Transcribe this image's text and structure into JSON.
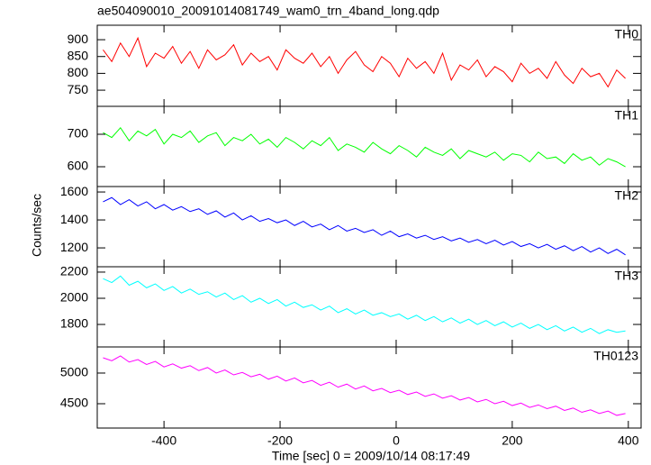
{
  "chart_data": {
    "type": "line",
    "title": "ae504090010_20091014081749_wam0_trn_4band_long.qdp",
    "xlabel": "Time [sec] 0 = 2009/10/14 08:17:49",
    "ylabel": "Counts/sec",
    "xlim": [
      -515,
      422
    ],
    "xticks": [
      -400,
      -200,
      0,
      200,
      400
    ],
    "x": [
      -505,
      -490,
      -475,
      -460,
      -445,
      -430,
      -415,
      -400,
      -385,
      -370,
      -355,
      -340,
      -325,
      -310,
      -295,
      -280,
      -265,
      -250,
      -235,
      -220,
      -205,
      -190,
      -175,
      -160,
      -145,
      -130,
      -115,
      -100,
      -85,
      -70,
      -55,
      -40,
      -25,
      -10,
      5,
      20,
      35,
      50,
      65,
      80,
      95,
      110,
      125,
      140,
      155,
      170,
      185,
      200,
      215,
      230,
      245,
      260,
      275,
      290,
      305,
      320,
      335,
      350,
      365,
      380,
      395
    ],
    "series": [
      {
        "name": "TH0",
        "color": "#ff0000",
        "ylim": [
          702,
          943
        ],
        "yticks": [
          750,
          800,
          850,
          900
        ],
        "values": [
          870,
          835,
          890,
          850,
          905,
          820,
          860,
          845,
          880,
          830,
          865,
          815,
          870,
          840,
          855,
          885,
          825,
          860,
          835,
          850,
          810,
          870,
          845,
          830,
          860,
          820,
          850,
          800,
          840,
          865,
          825,
          805,
          850,
          830,
          790,
          845,
          815,
          835,
          800,
          860,
          780,
          825,
          810,
          840,
          790,
          820,
          805,
          775,
          830,
          800,
          815,
          785,
          835,
          795,
          770,
          815,
          790,
          800,
          760,
          810,
          785
        ]
      },
      {
        "name": "TH1",
        "color": "#00ff00",
        "ylim": [
          539,
          786
        ],
        "yticks": [
          600,
          700
        ],
        "values": [
          705,
          690,
          720,
          680,
          710,
          695,
          715,
          670,
          700,
          690,
          710,
          675,
          695,
          705,
          665,
          690,
          680,
          700,
          670,
          685,
          660,
          690,
          675,
          655,
          680,
          665,
          690,
          650,
          670,
          660,
          645,
          675,
          655,
          640,
          665,
          650,
          630,
          660,
          645,
          635,
          655,
          625,
          650,
          640,
          630,
          645,
          620,
          640,
          635,
          615,
          645,
          625,
          630,
          610,
          640,
          620,
          630,
          605,
          625,
          615,
          600
        ]
      },
      {
        "name": "TH2",
        "color": "#0000ff",
        "ylim": [
          1065,
          1639
        ],
        "yticks": [
          1200,
          1400,
          1600
        ],
        "values": [
          1530,
          1560,
          1510,
          1545,
          1500,
          1530,
          1480,
          1510,
          1470,
          1495,
          1460,
          1480,
          1440,
          1465,
          1420,
          1450,
          1400,
          1430,
          1390,
          1410,
          1380,
          1400,
          1360,
          1390,
          1350,
          1370,
          1330,
          1360,
          1320,
          1340,
          1310,
          1330,
          1290,
          1320,
          1280,
          1300,
          1270,
          1290,
          1260,
          1280,
          1250,
          1270,
          1240,
          1260,
          1230,
          1255,
          1220,
          1245,
          1210,
          1230,
          1200,
          1225,
          1190,
          1215,
          1180,
          1210,
          1170,
          1200,
          1160,
          1190,
          1150
        ]
      },
      {
        "name": "TH3",
        "color": "#00ffff",
        "ylim": [
          1628,
          2241
        ],
        "yticks": [
          1800,
          2000,
          2200
        ],
        "values": [
          2150,
          2120,
          2170,
          2100,
          2130,
          2080,
          2110,
          2060,
          2090,
          2040,
          2070,
          2030,
          2050,
          2010,
          2040,
          1990,
          2020,
          1970,
          2000,
          1960,
          1990,
          1940,
          1970,
          1930,
          1950,
          1910,
          1940,
          1890,
          1920,
          1880,
          1910,
          1870,
          1890,
          1860,
          1880,
          1840,
          1870,
          1830,
          1860,
          1820,
          1850,
          1810,
          1840,
          1800,
          1830,
          1790,
          1820,
          1780,
          1810,
          1770,
          1800,
          1760,
          1790,
          1750,
          1780,
          1740,
          1770,
          1730,
          1760,
          1740,
          1750
        ]
      },
      {
        "name": "TH0123",
        "color": "#ff00ff",
        "ylim": [
          4103,
          5426
        ],
        "yticks": [
          4500,
          5000
        ],
        "values": [
          5250,
          5200,
          5280,
          5180,
          5220,
          5140,
          5190,
          5100,
          5150,
          5080,
          5120,
          5040,
          5090,
          5000,
          5050,
          4970,
          5010,
          4940,
          4980,
          4900,
          4950,
          4870,
          4920,
          4840,
          4880,
          4800,
          4850,
          4770,
          4820,
          4740,
          4790,
          4710,
          4750,
          4680,
          4720,
          4650,
          4690,
          4620,
          4660,
          4590,
          4630,
          4560,
          4600,
          4530,
          4570,
          4500,
          4540,
          4470,
          4510,
          4440,
          4480,
          4420,
          4460,
          4390,
          4430,
          4360,
          4400,
          4340,
          4380,
          4310,
          4340
        ]
      }
    ]
  }
}
